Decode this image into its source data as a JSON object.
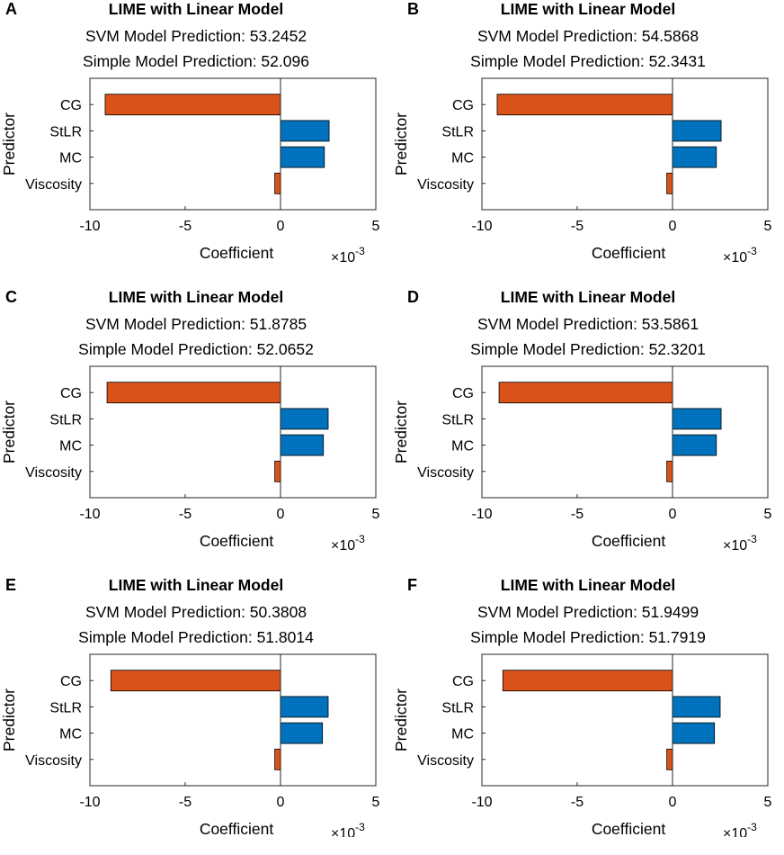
{
  "colors": {
    "positive": "#0072BD",
    "negative": "#D95319"
  },
  "chart_data": [
    {
      "type": "bar",
      "orientation": "horizontal",
      "panel_label": "A",
      "title": "LIME with Linear Model",
      "subtitle1": "SVM Model Prediction: 53.2452",
      "subtitle2": "Simple Model Prediction: 52.096",
      "xlabel": "Coefficient",
      "ylabel": "Predictor",
      "x_exponent_label": "×10",
      "x_exponent": "-3",
      "xlim": [
        -10,
        5
      ],
      "xticks": [
        "-10",
        "-5",
        "0",
        "5"
      ],
      "categories": [
        "CG",
        "StLR",
        "MC",
        "Viscosity"
      ],
      "values": [
        -9.2,
        2.55,
        2.3,
        -0.3
      ]
    },
    {
      "type": "bar",
      "orientation": "horizontal",
      "panel_label": "B",
      "title": "LIME with Linear Model",
      "subtitle1": "SVM Model Prediction: 54.5868",
      "subtitle2": "Simple Model Prediction: 52.3431",
      "xlabel": "Coefficient",
      "ylabel": "Predictor",
      "x_exponent_label": "×10",
      "x_exponent": "-3",
      "xlim": [
        -10,
        5
      ],
      "xticks": [
        "-10",
        "-5",
        "0",
        "5"
      ],
      "categories": [
        "CG",
        "StLR",
        "MC",
        "Viscosity"
      ],
      "values": [
        -9.2,
        2.55,
        2.3,
        -0.3
      ]
    },
    {
      "type": "bar",
      "orientation": "horizontal",
      "panel_label": "C",
      "title": "LIME with Linear Model",
      "subtitle1": "SVM Model Prediction: 51.8785",
      "subtitle2": "Simple Model Prediction: 52.0652",
      "xlabel": "Coefficient",
      "ylabel": "Predictor",
      "x_exponent_label": "×10",
      "x_exponent": "-3",
      "xlim": [
        -10,
        5
      ],
      "xticks": [
        "-10",
        "-5",
        "0",
        "5"
      ],
      "categories": [
        "CG",
        "StLR",
        "MC",
        "Viscosity"
      ],
      "values": [
        -9.1,
        2.5,
        2.25,
        -0.3
      ]
    },
    {
      "type": "bar",
      "orientation": "horizontal",
      "panel_label": "D",
      "title": "LIME with Linear Model",
      "subtitle1": "SVM Model Prediction: 53.5861",
      "subtitle2": "Simple Model Prediction: 52.3201",
      "xlabel": "Coefficient",
      "ylabel": "Predictor",
      "x_exponent_label": "×10",
      "x_exponent": "-3",
      "xlim": [
        -10,
        5
      ],
      "xticks": [
        "-10",
        "-5",
        "0",
        "5"
      ],
      "categories": [
        "CG",
        "StLR",
        "MC",
        "Viscosity"
      ],
      "values": [
        -9.1,
        2.55,
        2.3,
        -0.3
      ]
    },
    {
      "type": "bar",
      "orientation": "horizontal",
      "panel_label": "E",
      "title": "LIME with Linear Model",
      "subtitle1": "SVM Model Prediction: 50.3808",
      "subtitle2": "Simple Model Prediction: 51.8014",
      "xlabel": "Coefficient",
      "ylabel": "Predictor",
      "x_exponent_label": "×10",
      "x_exponent": "-3",
      "xlim": [
        -10,
        5
      ],
      "xticks": [
        "-10",
        "-5",
        "0",
        "5"
      ],
      "categories": [
        "CG",
        "StLR",
        "MC",
        "Viscosity"
      ],
      "values": [
        -8.9,
        2.5,
        2.2,
        -0.3
      ]
    },
    {
      "type": "bar",
      "orientation": "horizontal",
      "panel_label": "F",
      "title": "LIME with Linear Model",
      "subtitle1": "SVM Model Prediction: 51.9499",
      "subtitle2": "Simple Model Prediction: 51.7919",
      "xlabel": "Coefficient",
      "ylabel": "Predictor",
      "x_exponent_label": "×10",
      "x_exponent": "-3",
      "xlim": [
        -10,
        5
      ],
      "xticks": [
        "-10",
        "-5",
        "0",
        "5"
      ],
      "categories": [
        "CG",
        "StLR",
        "MC",
        "Viscosity"
      ],
      "values": [
        -8.9,
        2.5,
        2.2,
        -0.3
      ]
    }
  ]
}
